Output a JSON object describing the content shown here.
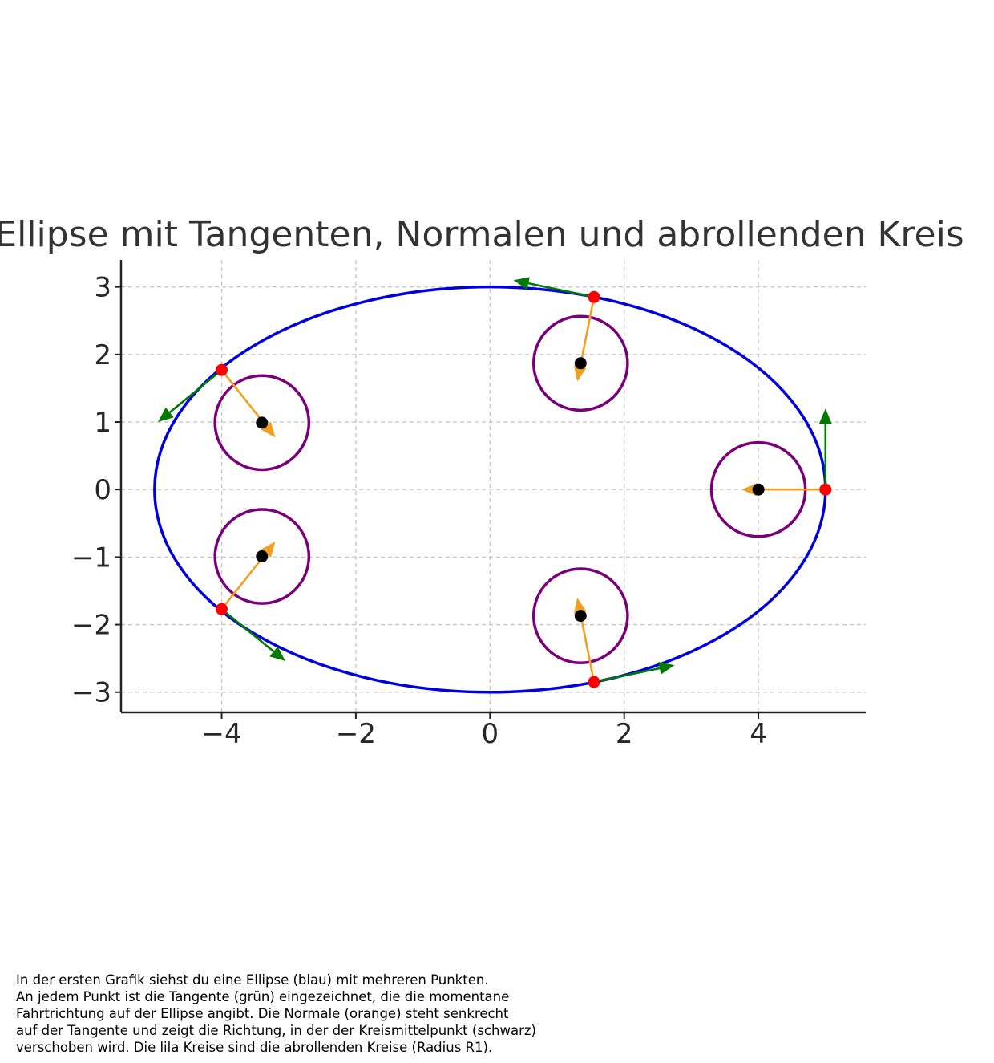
{
  "chart_data": {
    "type": "scatter",
    "title": "Ellipse mit Tangenten, Normalen und abrollenden Kreis",
    "xlabel": "",
    "ylabel": "",
    "xlim": [
      -5.5,
      5.6
    ],
    "ylim": [
      -3.3,
      3.4
    ],
    "xticks": [
      -4,
      -2,
      0,
      2,
      4
    ],
    "yticks": [
      -3,
      -2,
      -1,
      0,
      1,
      2,
      3
    ],
    "xtick_labels": [
      "−4",
      "−2",
      "0",
      "2",
      "4"
    ],
    "ytick_labels": [
      "−3",
      "−2",
      "−1",
      "0",
      "1",
      "2",
      "3"
    ],
    "grid": true,
    "ellipse": {
      "a": 5,
      "b": 3,
      "color": "#0000dd"
    },
    "circle_radius": 0.7,
    "points": [
      {
        "x": 5.0,
        "y": 0.0,
        "center": [
          4.0,
          0.0
        ],
        "tangent": [
          0.0,
          1.2
        ],
        "normal": [
          -1.25,
          0.0
        ]
      },
      {
        "x": 1.55,
        "y": 2.85,
        "center": [
          1.35,
          1.87
        ],
        "tangent": [
          -1.2,
          0.25
        ],
        "normal": [
          -0.25,
          -1.25
        ]
      },
      {
        "x": -4.0,
        "y": 1.77,
        "center": [
          -3.4,
          0.99
        ],
        "tangent": [
          -0.95,
          -0.77
        ],
        "normal": [
          0.8,
          -1.0
        ]
      },
      {
        "x": -4.0,
        "y": -1.77,
        "center": [
          -3.4,
          -0.99
        ],
        "tangent": [
          0.95,
          -0.77
        ],
        "normal": [
          0.8,
          1.0
        ]
      },
      {
        "x": 1.55,
        "y": -2.85,
        "center": [
          1.35,
          -1.87
        ],
        "tangent": [
          1.2,
          0.25
        ],
        "normal": [
          -0.25,
          1.25
        ]
      }
    ],
    "colors": {
      "ellipse": "#0000dd",
      "tangent": "#007a00",
      "normal": "#f0a020",
      "circle": "#7a007a",
      "point": "#ff0000",
      "center": "#000000",
      "grid": "#c8c8c8",
      "axis": "#222222"
    }
  },
  "caption": {
    "lines": [
      "In der ersten Grafik siehst du eine Ellipse (blau) mit mehreren Punkten.",
      "An jedem Punkt ist die Tangente (grün) eingezeichnet, die die momentane",
      "Fahrtrichtung auf der Ellipse angibt. Die Normale (orange) steht senkrecht",
      "auf der Tangente und zeigt die Richtung, in der der Kreismittelpunkt (schwarz)",
      "verschoben wird. Die lila Kreise sind die abrollenden Kreise (Radius R1)."
    ]
  }
}
